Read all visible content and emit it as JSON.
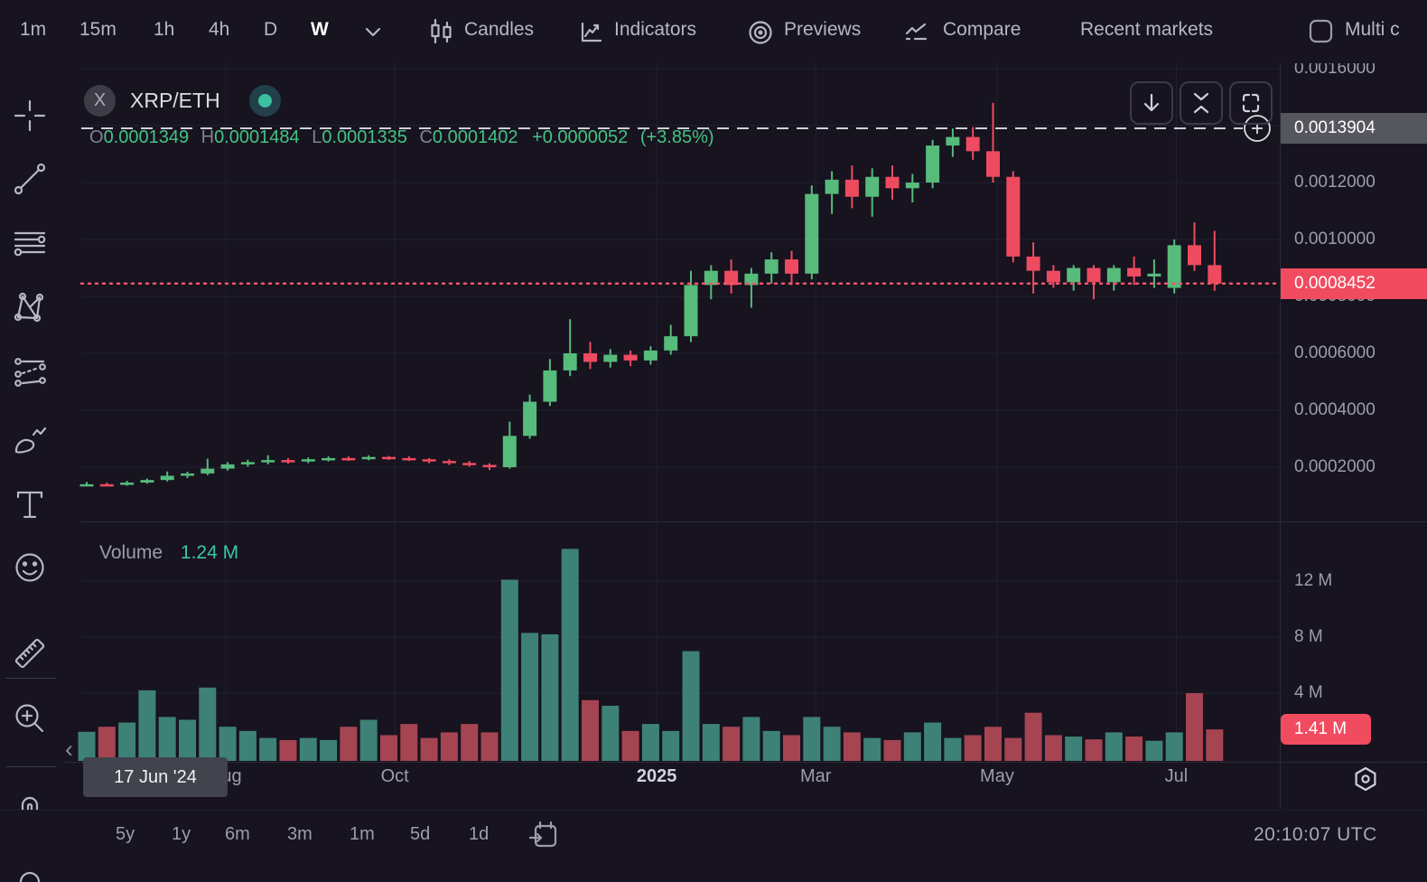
{
  "topbar": {
    "intervals": [
      "1m",
      "15m",
      "1h",
      "4h",
      "D",
      "W"
    ],
    "active_interval": "W",
    "candles_label": "Candles",
    "indicators_label": "Indicators",
    "previews_label": "Previews",
    "compare_label": "Compare",
    "recent_markets_label": "Recent markets",
    "multi_chart_label": "Multi c"
  },
  "symbol": {
    "badge": "X",
    "name": "XRP/ETH"
  },
  "readout": {
    "o_label": "O",
    "o": "0.0001349",
    "h_label": "H",
    "h": "0.0001484",
    "l_label": "L",
    "l": "0.0001335",
    "c_label": "C",
    "c": "0.0001402",
    "change": "+0.0000052",
    "change_pct": "(+3.85%)"
  },
  "volume_header": {
    "title": "Volume",
    "value": "1.24 M"
  },
  "price_axis": {
    "ticks": [
      "0.0016000",
      "0.0012000",
      "0.0010000",
      "0.0008000",
      "0.0006000",
      "0.0004000",
      "0.0002000"
    ],
    "crosshair_label": "0.0013904",
    "last_label": "0.0008452"
  },
  "volume_axis": {
    "ticks_m": [
      12,
      8,
      4
    ],
    "tick_suffix": " M",
    "last_label": "1.41 M"
  },
  "time_axis": {
    "labels": [
      {
        "label": "Aug",
        "week_index": 6.9
      },
      {
        "label": "Oct",
        "week_index": 15.3
      },
      {
        "label": "2025",
        "week_index": 28.3,
        "emphasis": true
      },
      {
        "label": "Mar",
        "week_index": 36.2
      },
      {
        "label": "May",
        "week_index": 45.2
      },
      {
        "label": "Jul",
        "week_index": 54.1
      }
    ]
  },
  "tooltip": {
    "text": "17 Jun '24"
  },
  "clock": {
    "text": "20:10:07 UTC"
  },
  "bottom_ranges": [
    "5y",
    "1y",
    "6m",
    "3m",
    "1m",
    "5d",
    "1d"
  ],
  "sidebar": {
    "tools": [
      "crosshair",
      "trend-line",
      "fib-lines",
      "xabcd-pattern",
      "projection",
      "brush",
      "text",
      "emoji",
      "ruler",
      "zoom-in",
      "magnet"
    ]
  },
  "colors": {
    "up": "#56bb7b",
    "down": "#ee4b60",
    "vol_up": "#3e8177",
    "vol_down": "#a54552",
    "accent_teal": "#3cc6a8",
    "text_green": "#43c383",
    "last_price_bg": "#f14b60",
    "crosshair_bg": "#55565e",
    "grid": "#232031",
    "dashed_line": "#cfd0d8",
    "dotted_line": "#f3566b",
    "background": "#17131f"
  },
  "chart_data": {
    "type": "candlestick_with_volume",
    "symbol": "XRP/ETH",
    "interval": "W",
    "alert_line": 0.0013904,
    "last_price": 0.0008452,
    "last_volume_m": 1.41,
    "hovered": {
      "date": "17 Jun '24",
      "open": 0.0001349,
      "high": 0.0001484,
      "low": 0.0001335,
      "close": 0.0001402,
      "volume_m": 1.24
    },
    "price_tick_step": 0.0002,
    "price_tick_max": 0.0016,
    "volume_ticks_m": [
      12,
      8,
      4
    ],
    "candles": [
      [
        "2024-06-17",
        0.0001349,
        0.0001484,
        0.0001335,
        0.0001402,
        1.24
      ],
      [
        "2024-06-24",
        0.0001402,
        0.000146,
        0.000136,
        0.000138,
        1.6
      ],
      [
        "2024-07-01",
        0.000138,
        0.000152,
        0.000135,
        0.000146,
        1.9
      ],
      [
        "2024-07-08",
        0.000146,
        0.00016,
        0.000142,
        0.000155,
        4.2
      ],
      [
        "2024-07-15",
        0.000155,
        0.000185,
        0.00015,
        0.00017,
        2.3
      ],
      [
        "2024-07-22",
        0.00017,
        0.000184,
        0.000162,
        0.000178,
        2.1
      ],
      [
        "2024-07-29",
        0.000178,
        0.00023,
        0.000172,
        0.000195,
        4.4
      ],
      [
        "2024-08-05",
        0.000195,
        0.000218,
        0.000188,
        0.00021,
        1.6
      ],
      [
        "2024-08-12",
        0.00021,
        0.000226,
        0.000202,
        0.000218,
        1.3
      ],
      [
        "2024-08-19",
        0.000218,
        0.000242,
        0.00021,
        0.000225,
        0.8
      ],
      [
        "2024-08-26",
        0.000225,
        0.000232,
        0.000212,
        0.00022,
        0.65
      ],
      [
        "2024-09-02",
        0.00022,
        0.000234,
        0.000214,
        0.000228,
        0.8
      ],
      [
        "2024-09-09",
        0.000228,
        0.000238,
        0.00022,
        0.000232,
        0.65
      ],
      [
        "2024-09-16",
        0.000232,
        0.000238,
        0.000222,
        0.00023,
        1.6
      ],
      [
        "2024-09-23",
        0.00023,
        0.000242,
        0.000224,
        0.000236,
        2.1
      ],
      [
        "2024-09-30",
        0.000236,
        0.00024,
        0.000226,
        0.000232,
        1.0
      ],
      [
        "2024-10-07",
        0.000232,
        0.000238,
        0.000222,
        0.000228,
        1.8
      ],
      [
        "2024-10-14",
        0.000228,
        0.000232,
        0.000214,
        0.000222,
        0.8
      ],
      [
        "2024-10-21",
        0.000222,
        0.000228,
        0.000208,
        0.000215,
        1.2
      ],
      [
        "2024-10-28",
        0.000215,
        0.000222,
        0.000202,
        0.000208,
        1.8
      ],
      [
        "2024-11-04",
        0.000208,
        0.000214,
        0.00019,
        0.0002,
        1.2
      ],
      [
        "2024-11-11",
        0.0002,
        0.00036,
        0.000195,
        0.00031,
        12.1
      ],
      [
        "2024-11-18",
        0.00031,
        0.000455,
        0.0003,
        0.00043,
        8.3
      ],
      [
        "2024-11-25",
        0.00043,
        0.00058,
        0.000415,
        0.00054,
        8.2
      ],
      [
        "2024-12-02",
        0.00054,
        0.00072,
        0.00052,
        0.0006,
        14.3
      ],
      [
        "2024-12-09",
        0.0006,
        0.00064,
        0.000545,
        0.00057,
        3.5
      ],
      [
        "2024-12-16",
        0.00057,
        0.000615,
        0.00055,
        0.000595,
        3.1
      ],
      [
        "2024-12-23",
        0.000595,
        0.00061,
        0.000555,
        0.000575,
        1.3
      ],
      [
        "2024-12-30",
        0.000575,
        0.000625,
        0.00056,
        0.00061,
        1.8
      ],
      [
        "2025-01-06",
        0.00061,
        0.0007,
        0.000595,
        0.00066,
        1.3
      ],
      [
        "2025-01-13",
        0.00066,
        0.00089,
        0.00064,
        0.00084,
        7.0
      ],
      [
        "2025-01-20",
        0.00084,
        0.00091,
        0.00079,
        0.00089,
        1.8
      ],
      [
        "2025-01-27",
        0.00089,
        0.00093,
        0.00081,
        0.00084,
        1.6
      ],
      [
        "2025-02-03",
        0.00084,
        0.0009,
        0.00076,
        0.00088,
        2.3
      ],
      [
        "2025-02-10",
        0.00088,
        0.000955,
        0.000845,
        0.00093,
        1.3
      ],
      [
        "2025-02-17",
        0.00093,
        0.00096,
        0.00084,
        0.00088,
        1.0
      ],
      [
        "2025-02-24",
        0.00088,
        0.00119,
        0.00086,
        0.00116,
        2.3
      ],
      [
        "2025-03-03",
        0.00116,
        0.00124,
        0.00109,
        0.00121,
        1.6
      ],
      [
        "2025-03-10",
        0.00121,
        0.00126,
        0.00111,
        0.00115,
        1.2
      ],
      [
        "2025-03-17",
        0.00115,
        0.00125,
        0.00108,
        0.00122,
        0.8
      ],
      [
        "2025-03-24",
        0.00122,
        0.00126,
        0.00114,
        0.00118,
        0.65
      ],
      [
        "2025-03-31",
        0.00118,
        0.00123,
        0.00113,
        0.0012,
        1.2
      ],
      [
        "2025-04-07",
        0.0012,
        0.00135,
        0.00118,
        0.00133,
        1.9
      ],
      [
        "2025-04-14",
        0.00133,
        0.00139,
        0.00129,
        0.00136,
        0.8
      ],
      [
        "2025-04-21",
        0.00136,
        0.001395,
        0.00128,
        0.00131,
        1.0
      ],
      [
        "2025-04-28",
        0.00131,
        0.00148,
        0.0012,
        0.00122,
        1.6
      ],
      [
        "2025-05-05",
        0.00122,
        0.00124,
        0.00092,
        0.00094,
        0.8
      ],
      [
        "2025-05-12",
        0.00094,
        0.00099,
        0.00081,
        0.00089,
        2.6
      ],
      [
        "2025-05-19",
        0.00089,
        0.00091,
        0.00083,
        0.00085,
        1.0
      ],
      [
        "2025-05-26",
        0.00085,
        0.00091,
        0.00082,
        0.0009,
        0.9
      ],
      [
        "2025-06-02",
        0.0009,
        0.00091,
        0.00079,
        0.00085,
        0.7
      ],
      [
        "2025-06-09",
        0.00085,
        0.00091,
        0.00082,
        0.0009,
        1.2
      ],
      [
        "2025-06-16",
        0.0009,
        0.00094,
        0.00084,
        0.00087,
        0.9
      ],
      [
        "2025-06-23",
        0.00087,
        0.00093,
        0.00083,
        0.00088,
        0.6
      ],
      [
        "2025-06-30",
        0.00083,
        0.001,
        0.00081,
        0.00098,
        1.2
      ],
      [
        "2025-07-07",
        0.00098,
        0.00106,
        0.00089,
        0.00091,
        4.0
      ],
      [
        "2025-07-14",
        0.00091,
        0.00103,
        0.00082,
        0.0008452,
        1.41
      ]
    ]
  }
}
